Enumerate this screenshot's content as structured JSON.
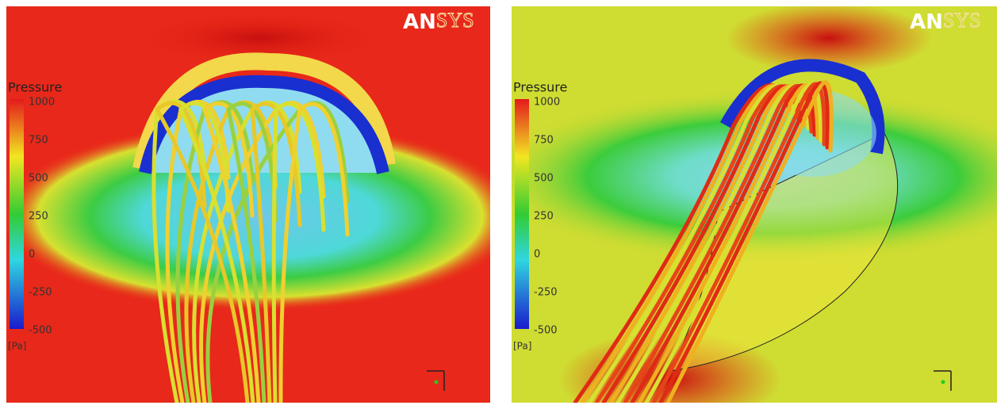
{
  "panels": [
    {
      "logo": [
        "AN",
        "SYS"
      ],
      "legend": {
        "title": "Pressure",
        "ticks": [
          "1000",
          "750",
          "500",
          "250",
          "0",
          "-250",
          "-500"
        ],
        "unit": "[Pa]"
      }
    },
    {
      "logo": [
        "AN",
        "SYS"
      ],
      "legend": {
        "title": "Pressure",
        "ticks": [
          "1000",
          "750",
          "500",
          "250",
          "0",
          "-250",
          "-500"
        ],
        "unit": "[Pa]"
      }
    }
  ]
}
